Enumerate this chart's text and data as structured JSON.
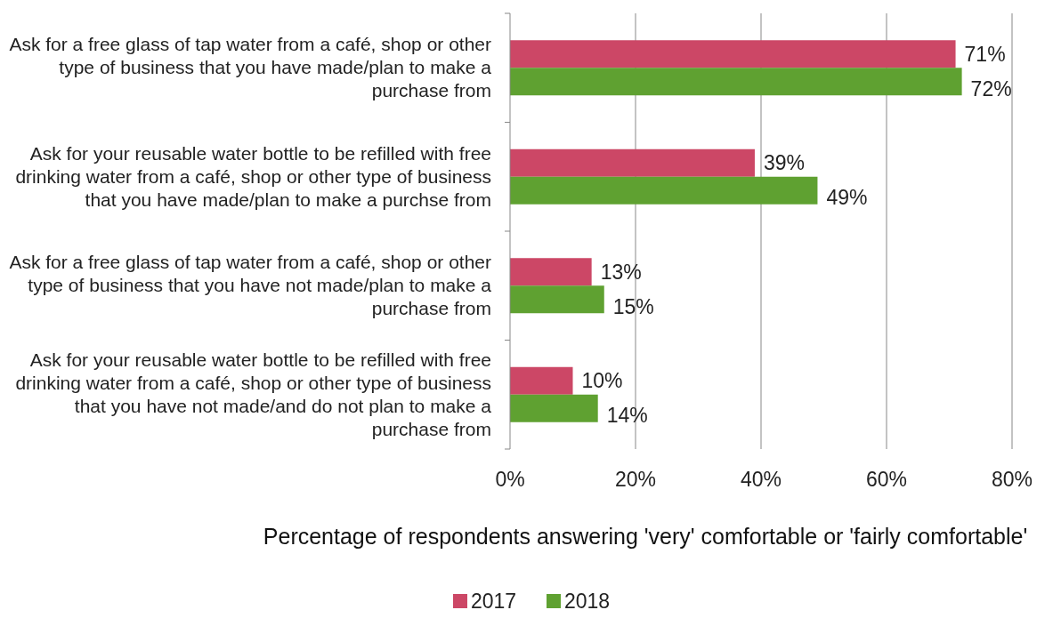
{
  "chart_data": {
    "type": "bar",
    "orientation": "horizontal",
    "categories": [
      "Ask for a free glass of tap water from a café, shop or other type of business that you have made/plan to make a purchase from",
      "Ask for your reusable water bottle to be refilled with free drinking water from a café, shop or other type of business that you have made/plan to make a purchse from",
      "Ask for a free glass of tap water from a café, shop or other type of business that you have not made/plan to make a purchase from",
      "Ask for your reusable water bottle to be refilled with free drinking water from a café, shop or other type of business that you have not made/and do not plan to make a purchase from"
    ],
    "series": [
      {
        "name": "2017",
        "color": "#cc4766",
        "values": [
          71,
          39,
          13,
          10
        ],
        "value_labels": [
          "71%",
          "39%",
          "13%",
          "10%"
        ]
      },
      {
        "name": "2018",
        "color": "#5fa131",
        "values": [
          72,
          49,
          15,
          14
        ],
        "value_labels": [
          "72%",
          "49%",
          "15%",
          "14%"
        ]
      }
    ],
    "xlim": [
      0,
      80
    ],
    "xticks": [
      {
        "value": 0,
        "label": "0%"
      },
      {
        "value": 20,
        "label": "20%"
      },
      {
        "value": 40,
        "label": "40%"
      },
      {
        "value": 60,
        "label": "60%"
      },
      {
        "value": 80,
        "label": "80%"
      }
    ],
    "xlabel": "Percentage of respondents answering 'very' comfortable or 'fairly comfortable'",
    "grid": "x",
    "legend": "bottom"
  }
}
